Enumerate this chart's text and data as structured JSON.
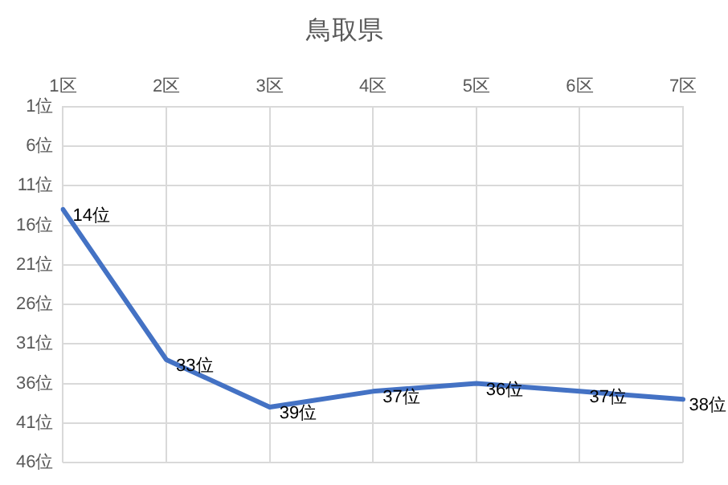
{
  "chart_data": {
    "type": "line",
    "title": "鳥取県",
    "categories": [
      "1区",
      "2区",
      "3区",
      "4区",
      "5区",
      "6区",
      "7区"
    ],
    "series": [
      {
        "color": "#4472c4",
        "values": [
          14,
          33,
          39,
          37,
          36,
          37,
          38
        ],
        "value_labels": [
          "14位",
          "33位",
          "39位",
          "37位",
          "36位",
          "37位",
          "38位"
        ]
      }
    ],
    "ylim": [
      46,
      1
    ],
    "yticks": [
      {
        "value": 1,
        "label": "1位"
      },
      {
        "value": 6,
        "label": "6位"
      },
      {
        "value": 11,
        "label": "11位"
      },
      {
        "value": 16,
        "label": "16位"
      },
      {
        "value": 21,
        "label": "21位"
      },
      {
        "value": 26,
        "label": "26位"
      },
      {
        "value": 31,
        "label": "31位"
      },
      {
        "value": 36,
        "label": "36位"
      },
      {
        "value": 41,
        "label": "41位"
      },
      {
        "value": 46,
        "label": "46位"
      }
    ],
    "grid": true,
    "legend": false,
    "marker": "none",
    "line_style": "solid"
  }
}
